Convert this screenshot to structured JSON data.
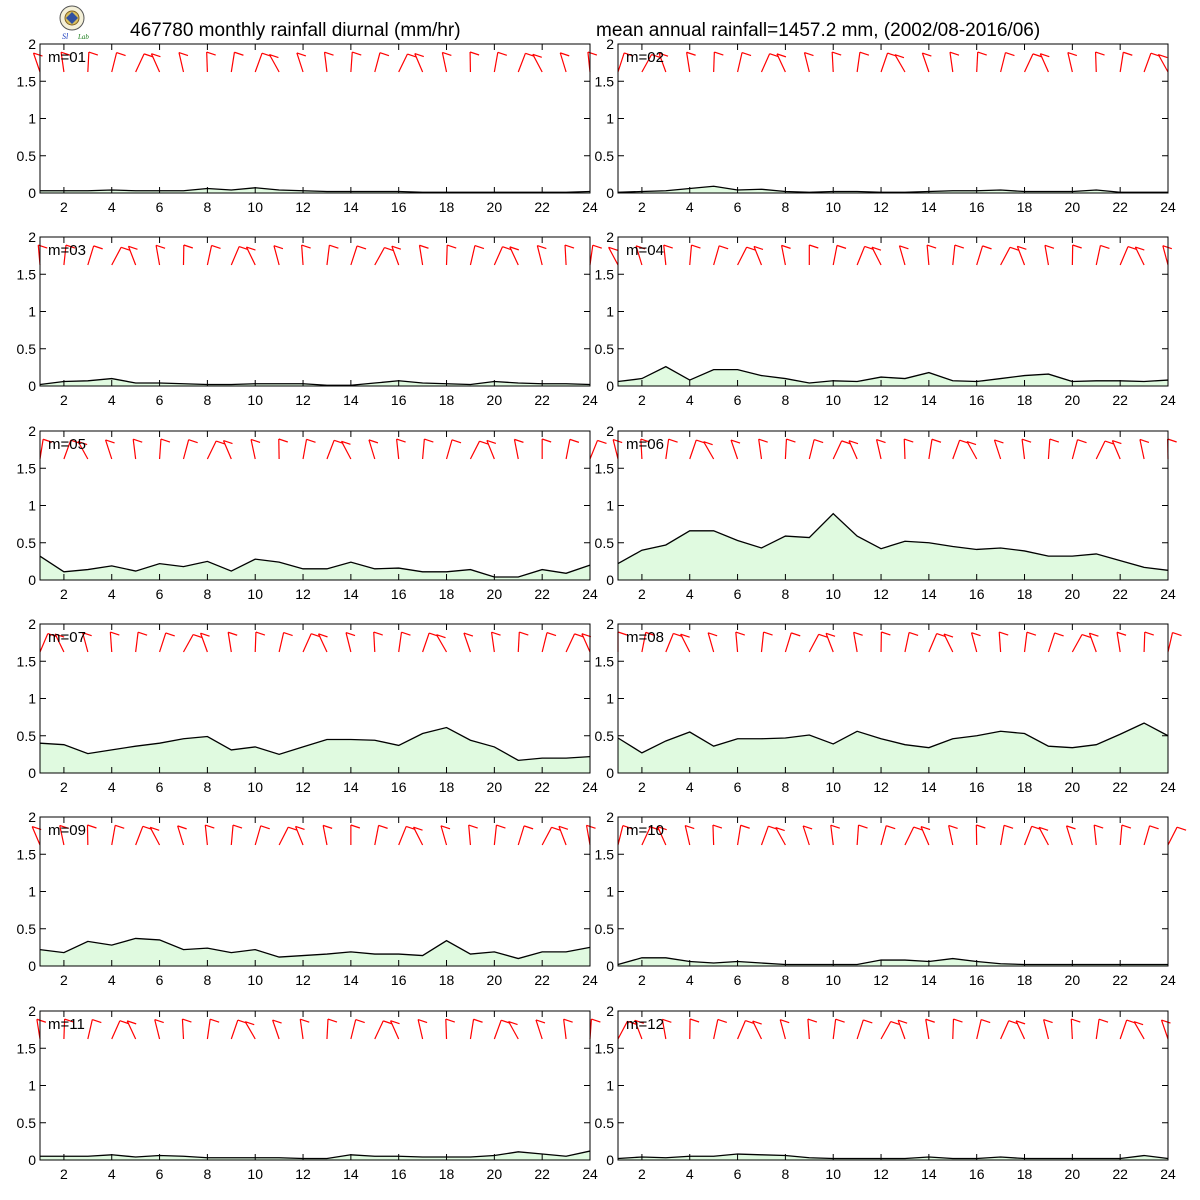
{
  "header": {
    "title_left": "467780 monthly rainfall diurnal (mm/hr)",
    "title_right": "mean annual rainfall=1457.2 mm, (2002/08-2016/06)"
  },
  "colors": {
    "rain_fill": "#e0fae0",
    "rain_line": "#000000",
    "wind_barb": "#ff0000",
    "frame": "#000000"
  },
  "chart_data": [
    {
      "type": "area",
      "panel_label": "m=01",
      "x": [
        1,
        2,
        3,
        4,
        5,
        6,
        7,
        8,
        9,
        10,
        11,
        12,
        13,
        14,
        15,
        16,
        17,
        18,
        19,
        20,
        21,
        22,
        23,
        24
      ],
      "values": [
        0.03,
        0.03,
        0.03,
        0.04,
        0.03,
        0.03,
        0.03,
        0.06,
        0.04,
        0.07,
        0.04,
        0.03,
        0.02,
        0.02,
        0.02,
        0.02,
        0.01,
        0.01,
        0.01,
        0.01,
        0.01,
        0.01,
        0.01,
        0.02
      ],
      "ylim": [
        0,
        2
      ],
      "yticks": [
        0,
        0.5,
        1,
        1.5,
        2
      ],
      "xticks": [
        2,
        4,
        6,
        8,
        10,
        12,
        14,
        16,
        18,
        20,
        22,
        24
      ]
    },
    {
      "type": "area",
      "panel_label": "m=02",
      "x": [
        1,
        2,
        3,
        4,
        5,
        6,
        7,
        8,
        9,
        10,
        11,
        12,
        13,
        14,
        15,
        16,
        17,
        18,
        19,
        20,
        21,
        22,
        23,
        24
      ],
      "values": [
        0.01,
        0.02,
        0.03,
        0.06,
        0.09,
        0.04,
        0.05,
        0.02,
        0.01,
        0.02,
        0.02,
        0.01,
        0.01,
        0.02,
        0.03,
        0.03,
        0.04,
        0.02,
        0.02,
        0.02,
        0.04,
        0.01,
        0.01,
        0.01
      ],
      "ylim": [
        0,
        2
      ],
      "yticks": [
        0,
        0.5,
        1,
        1.5,
        2
      ],
      "xticks": [
        2,
        4,
        6,
        8,
        10,
        12,
        14,
        16,
        18,
        20,
        22,
        24
      ]
    },
    {
      "type": "area",
      "panel_label": "m=03",
      "x": [
        1,
        2,
        3,
        4,
        5,
        6,
        7,
        8,
        9,
        10,
        11,
        12,
        13,
        14,
        15,
        16,
        17,
        18,
        19,
        20,
        21,
        22,
        23,
        24
      ],
      "values": [
        0.02,
        0.06,
        0.07,
        0.1,
        0.04,
        0.04,
        0.03,
        0.02,
        0.02,
        0.03,
        0.03,
        0.03,
        0.01,
        0.01,
        0.04,
        0.07,
        0.04,
        0.03,
        0.02,
        0.06,
        0.04,
        0.03,
        0.03,
        0.02
      ],
      "ylim": [
        0,
        2
      ],
      "yticks": [
        0,
        0.5,
        1,
        1.5,
        2
      ],
      "xticks": [
        2,
        4,
        6,
        8,
        10,
        12,
        14,
        16,
        18,
        20,
        22,
        24
      ]
    },
    {
      "type": "area",
      "panel_label": "m=04",
      "x": [
        1,
        2,
        3,
        4,
        5,
        6,
        7,
        8,
        9,
        10,
        11,
        12,
        13,
        14,
        15,
        16,
        17,
        18,
        19,
        20,
        21,
        22,
        23,
        24
      ],
      "values": [
        0.06,
        0.1,
        0.26,
        0.08,
        0.22,
        0.22,
        0.14,
        0.1,
        0.04,
        0.07,
        0.06,
        0.12,
        0.1,
        0.18,
        0.07,
        0.06,
        0.1,
        0.14,
        0.16,
        0.06,
        0.07,
        0.07,
        0.06,
        0.08
      ],
      "ylim": [
        0,
        2
      ],
      "yticks": [
        0,
        0.5,
        1,
        1.5,
        2
      ],
      "xticks": [
        2,
        4,
        6,
        8,
        10,
        12,
        14,
        16,
        18,
        20,
        22,
        24
      ]
    },
    {
      "type": "area",
      "panel_label": "m=05",
      "x": [
        1,
        2,
        3,
        4,
        5,
        6,
        7,
        8,
        9,
        10,
        11,
        12,
        13,
        14,
        15,
        16,
        17,
        18,
        19,
        20,
        21,
        22,
        23,
        24
      ],
      "values": [
        0.32,
        0.11,
        0.14,
        0.19,
        0.12,
        0.22,
        0.18,
        0.25,
        0.12,
        0.28,
        0.24,
        0.15,
        0.15,
        0.24,
        0.15,
        0.16,
        0.11,
        0.11,
        0.14,
        0.04,
        0.04,
        0.14,
        0.09,
        0.2
      ],
      "ylim": [
        0,
        2
      ],
      "yticks": [
        0,
        0.5,
        1,
        1.5,
        2
      ],
      "xticks": [
        2,
        4,
        6,
        8,
        10,
        12,
        14,
        16,
        18,
        20,
        22,
        24
      ]
    },
    {
      "type": "area",
      "panel_label": "m=06",
      "x": [
        1,
        2,
        3,
        4,
        5,
        6,
        7,
        8,
        9,
        10,
        11,
        12,
        13,
        14,
        15,
        16,
        17,
        18,
        19,
        20,
        21,
        22,
        23,
        24
      ],
      "values": [
        0.22,
        0.4,
        0.47,
        0.66,
        0.66,
        0.53,
        0.43,
        0.59,
        0.57,
        0.89,
        0.59,
        0.42,
        0.52,
        0.5,
        0.45,
        0.41,
        0.43,
        0.39,
        0.32,
        0.32,
        0.35,
        0.26,
        0.17,
        0.13
      ],
      "ylim": [
        0,
        2
      ],
      "yticks": [
        0,
        0.5,
        1,
        1.5,
        2
      ],
      "xticks": [
        2,
        4,
        6,
        8,
        10,
        12,
        14,
        16,
        18,
        20,
        22,
        24
      ]
    },
    {
      "type": "area",
      "panel_label": "m=07",
      "x": [
        1,
        2,
        3,
        4,
        5,
        6,
        7,
        8,
        9,
        10,
        11,
        12,
        13,
        14,
        15,
        16,
        17,
        18,
        19,
        20,
        21,
        22,
        23,
        24
      ],
      "values": [
        0.4,
        0.38,
        0.26,
        0.31,
        0.36,
        0.4,
        0.46,
        0.49,
        0.31,
        0.35,
        0.25,
        0.35,
        0.45,
        0.45,
        0.44,
        0.37,
        0.53,
        0.61,
        0.44,
        0.35,
        0.17,
        0.2,
        0.2,
        0.22
      ],
      "ylim": [
        0,
        2
      ],
      "yticks": [
        0,
        0.5,
        1,
        1.5,
        2
      ],
      "xticks": [
        2,
        4,
        6,
        8,
        10,
        12,
        14,
        16,
        18,
        20,
        22,
        24
      ]
    },
    {
      "type": "area",
      "panel_label": "m=08",
      "x": [
        1,
        2,
        3,
        4,
        5,
        6,
        7,
        8,
        9,
        10,
        11,
        12,
        13,
        14,
        15,
        16,
        17,
        18,
        19,
        20,
        21,
        22,
        23,
        24
      ],
      "values": [
        0.47,
        0.27,
        0.43,
        0.55,
        0.36,
        0.46,
        0.46,
        0.47,
        0.51,
        0.39,
        0.56,
        0.46,
        0.38,
        0.34,
        0.46,
        0.5,
        0.56,
        0.53,
        0.36,
        0.34,
        0.38,
        0.52,
        0.67,
        0.5
      ],
      "ylim": [
        0,
        2
      ],
      "yticks": [
        0,
        0.5,
        1,
        1.5,
        2
      ],
      "xticks": [
        2,
        4,
        6,
        8,
        10,
        12,
        14,
        16,
        18,
        20,
        22,
        24
      ]
    },
    {
      "type": "area",
      "panel_label": "m=09",
      "x": [
        1,
        2,
        3,
        4,
        5,
        6,
        7,
        8,
        9,
        10,
        11,
        12,
        13,
        14,
        15,
        16,
        17,
        18,
        19,
        20,
        21,
        22,
        23,
        24
      ],
      "values": [
        0.22,
        0.18,
        0.33,
        0.28,
        0.37,
        0.35,
        0.22,
        0.24,
        0.18,
        0.22,
        0.12,
        0.14,
        0.16,
        0.19,
        0.16,
        0.16,
        0.14,
        0.34,
        0.16,
        0.19,
        0.1,
        0.19,
        0.19,
        0.25
      ],
      "ylim": [
        0,
        2
      ],
      "yticks": [
        0,
        0.5,
        1,
        1.5,
        2
      ],
      "xticks": [
        2,
        4,
        6,
        8,
        10,
        12,
        14,
        16,
        18,
        20,
        22,
        24
      ]
    },
    {
      "type": "area",
      "panel_label": "m=10",
      "x": [
        1,
        2,
        3,
        4,
        5,
        6,
        7,
        8,
        9,
        10,
        11,
        12,
        13,
        14,
        15,
        16,
        17,
        18,
        19,
        20,
        21,
        22,
        23,
        24
      ],
      "values": [
        0.02,
        0.11,
        0.11,
        0.06,
        0.04,
        0.06,
        0.04,
        0.02,
        0.02,
        0.02,
        0.02,
        0.08,
        0.08,
        0.06,
        0.1,
        0.06,
        0.03,
        0.02,
        0.02,
        0.02,
        0.02,
        0.02,
        0.02,
        0.02
      ],
      "ylim": [
        0,
        2
      ],
      "yticks": [
        0,
        0.5,
        1,
        1.5,
        2
      ],
      "xticks": [
        2,
        4,
        6,
        8,
        10,
        12,
        14,
        16,
        18,
        20,
        22,
        24
      ]
    },
    {
      "type": "area",
      "panel_label": "m=11",
      "x": [
        1,
        2,
        3,
        4,
        5,
        6,
        7,
        8,
        9,
        10,
        11,
        12,
        13,
        14,
        15,
        16,
        17,
        18,
        19,
        20,
        21,
        22,
        23,
        24
      ],
      "values": [
        0.05,
        0.05,
        0.05,
        0.07,
        0.04,
        0.06,
        0.05,
        0.03,
        0.03,
        0.03,
        0.03,
        0.02,
        0.02,
        0.07,
        0.05,
        0.05,
        0.04,
        0.04,
        0.04,
        0.06,
        0.11,
        0.08,
        0.05,
        0.12
      ],
      "ylim": [
        0,
        2
      ],
      "yticks": [
        0,
        0.5,
        1,
        1.5,
        2
      ],
      "xticks": [
        2,
        4,
        6,
        8,
        10,
        12,
        14,
        16,
        18,
        20,
        22,
        24
      ]
    },
    {
      "type": "area",
      "panel_label": "m=12",
      "x": [
        1,
        2,
        3,
        4,
        5,
        6,
        7,
        8,
        9,
        10,
        11,
        12,
        13,
        14,
        15,
        16,
        17,
        18,
        19,
        20,
        21,
        22,
        23,
        24
      ],
      "values": [
        0.02,
        0.04,
        0.03,
        0.05,
        0.05,
        0.08,
        0.07,
        0.06,
        0.03,
        0.02,
        0.02,
        0.02,
        0.02,
        0.04,
        0.02,
        0.02,
        0.04,
        0.02,
        0.02,
        0.02,
        0.02,
        0.02,
        0.06,
        0.02
      ],
      "ylim": [
        0,
        2
      ],
      "yticks": [
        0,
        0.5,
        1,
        1.5,
        2
      ],
      "xticks": [
        2,
        4,
        6,
        8,
        10,
        12,
        14,
        16,
        18,
        20,
        22,
        24
      ]
    }
  ]
}
